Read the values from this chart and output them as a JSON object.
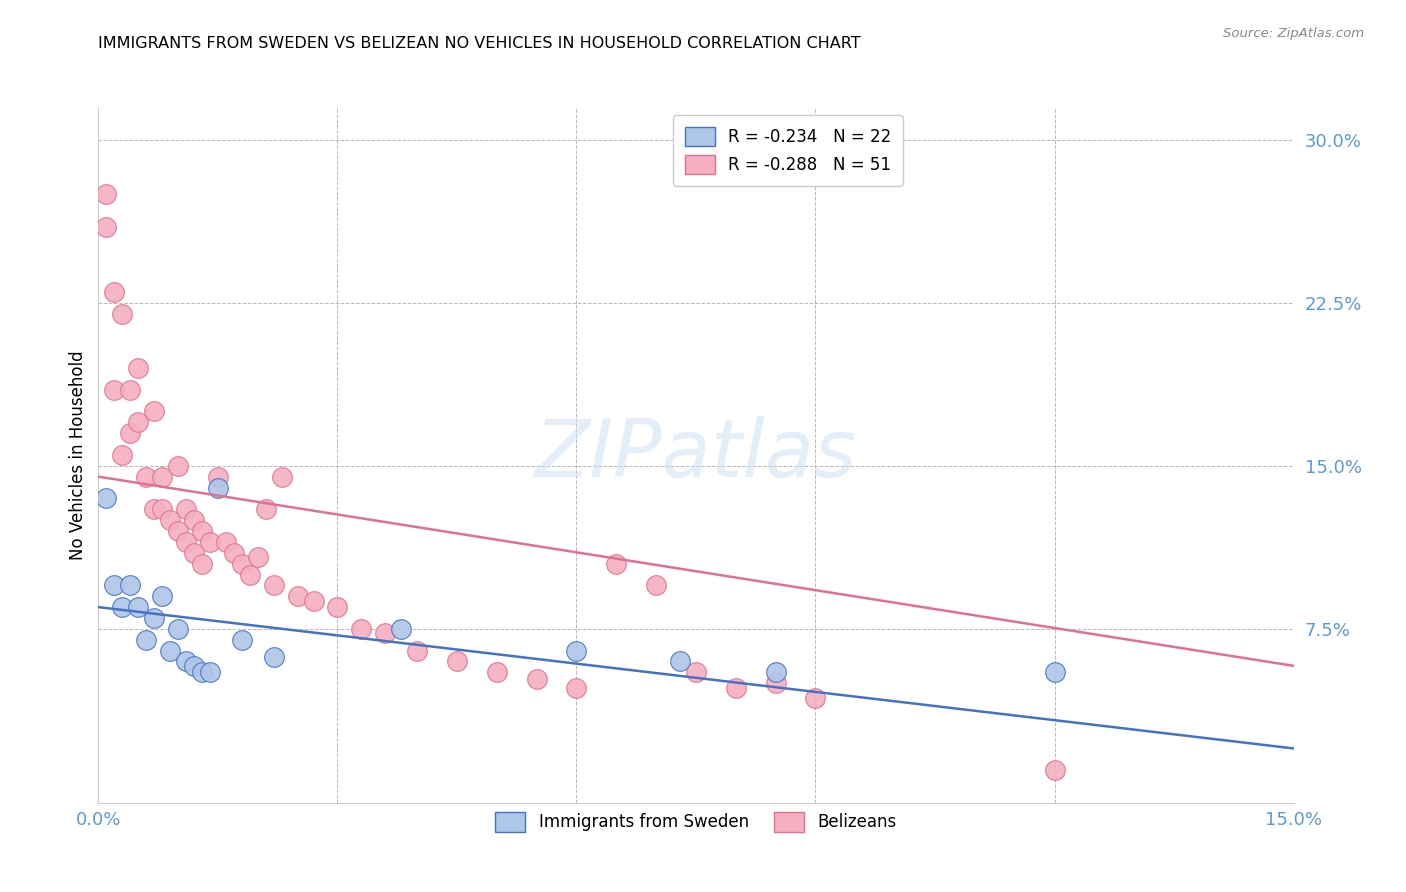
{
  "title": "IMMIGRANTS FROM SWEDEN VS BELIZEAN NO VEHICLES IN HOUSEHOLD CORRELATION CHART",
  "source": "Source: ZipAtlas.com",
  "ylabel": "No Vehicles in Household",
  "xlim": [
    0.0,
    0.15
  ],
  "ylim": [
    -0.005,
    0.315
  ],
  "axis_color": "#5b9bd5",
  "grid_color": "#b8b8b8",
  "watermark_text": "ZIPatlas",
  "legend1_label": "R = -0.234   N = 22",
  "legend2_label": "R = -0.288   N = 51",
  "legend_color1": "#aec6e8",
  "legend_color2": "#f4afc0",
  "line1_color": "#4472c4",
  "line2_color": "#e07090",
  "scatter1_color": "#aec6e8",
  "scatter1_edge": "#4472c4",
  "scatter2_color": "#f4afc0",
  "scatter2_edge": "#e07090",
  "sweden_x": [
    0.001,
    0.002,
    0.003,
    0.004,
    0.005,
    0.006,
    0.007,
    0.008,
    0.009,
    0.01,
    0.011,
    0.012,
    0.013,
    0.014,
    0.015,
    0.018,
    0.022,
    0.038,
    0.06,
    0.073,
    0.085,
    0.12
  ],
  "sweden_y": [
    0.135,
    0.095,
    0.085,
    0.095,
    0.085,
    0.07,
    0.08,
    0.09,
    0.065,
    0.075,
    0.06,
    0.058,
    0.055,
    0.055,
    0.14,
    0.07,
    0.062,
    0.075,
    0.065,
    0.06,
    0.055,
    0.055
  ],
  "belize_x": [
    0.001,
    0.001,
    0.002,
    0.002,
    0.003,
    0.003,
    0.004,
    0.004,
    0.005,
    0.005,
    0.006,
    0.007,
    0.007,
    0.008,
    0.008,
    0.009,
    0.01,
    0.01,
    0.011,
    0.011,
    0.012,
    0.012,
    0.013,
    0.013,
    0.014,
    0.015,
    0.016,
    0.017,
    0.018,
    0.019,
    0.02,
    0.021,
    0.022,
    0.023,
    0.025,
    0.027,
    0.03,
    0.033,
    0.036,
    0.04,
    0.045,
    0.05,
    0.055,
    0.06,
    0.065,
    0.07,
    0.075,
    0.08,
    0.085,
    0.09,
    0.12
  ],
  "belize_y": [
    0.275,
    0.26,
    0.23,
    0.185,
    0.22,
    0.155,
    0.185,
    0.165,
    0.195,
    0.17,
    0.145,
    0.175,
    0.13,
    0.145,
    0.13,
    0.125,
    0.15,
    0.12,
    0.13,
    0.115,
    0.125,
    0.11,
    0.12,
    0.105,
    0.115,
    0.145,
    0.115,
    0.11,
    0.105,
    0.1,
    0.108,
    0.13,
    0.095,
    0.145,
    0.09,
    0.088,
    0.085,
    0.075,
    0.073,
    0.065,
    0.06,
    0.055,
    0.052,
    0.048,
    0.105,
    0.095,
    0.055,
    0.048,
    0.05,
    0.043,
    0.01
  ],
  "line1_x0": 0.0,
  "line1_y0": 0.085,
  "line1_x1": 0.15,
  "line1_y1": 0.02,
  "line2_x0": 0.0,
  "line2_y0": 0.145,
  "line2_x1": 0.15,
  "line2_y1": 0.058
}
